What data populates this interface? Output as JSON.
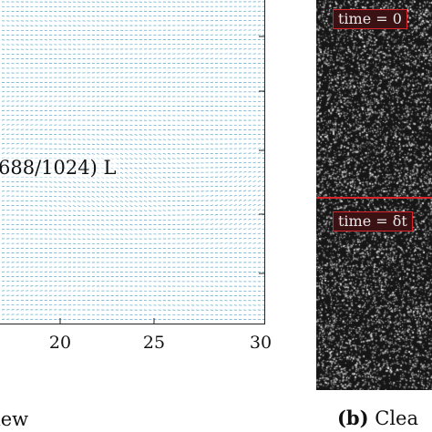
{
  "panel_a": {
    "annotation": "688/1024) L",
    "x_tick_labels": [
      "20",
      "25",
      "30"
    ],
    "caption": "iew",
    "vector_color": "#5aa6c8"
  },
  "panel_b": {
    "caption_label": "(b)",
    "caption_text": "Clea",
    "time_label_top": "time = 0",
    "time_label_bottom": "time = δt",
    "accent_color": "#d9242b"
  }
}
